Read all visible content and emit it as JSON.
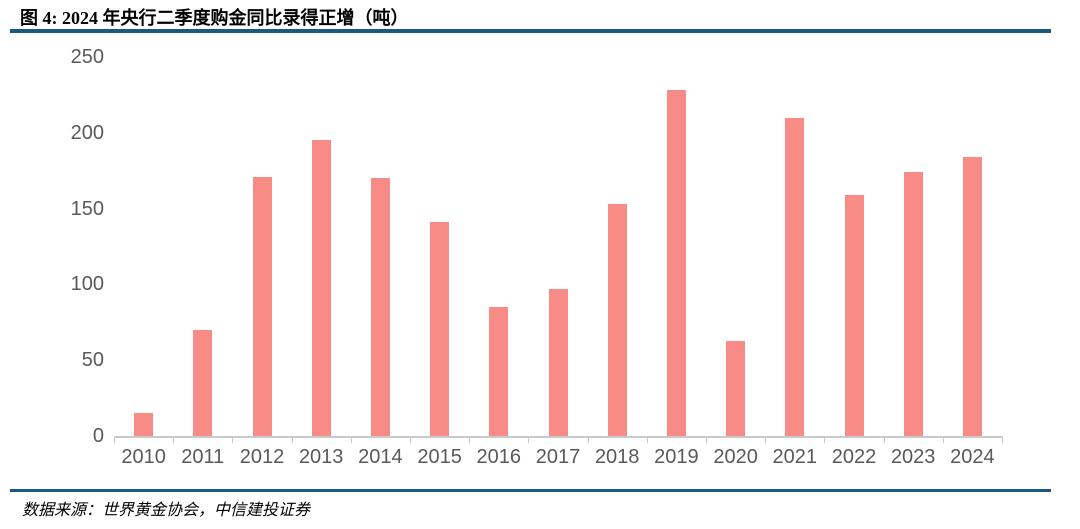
{
  "header": {
    "title": "图 4: 2024 年央行二季度购金同比录得正增（吨）"
  },
  "chart_data": {
    "type": "bar",
    "title": "图 4: 2024 年央行二季度购金同比录得正增（吨）",
    "categories": [
      "2010",
      "2011",
      "2012",
      "2013",
      "2014",
      "2015",
      "2016",
      "2017",
      "2018",
      "2019",
      "2020",
      "2021",
      "2022",
      "2023",
      "2024"
    ],
    "values": [
      15,
      70,
      171,
      195,
      170,
      141,
      85,
      97,
      153,
      228,
      63,
      210,
      159,
      174,
      184
    ],
    "unit": "吨",
    "xlabel": "",
    "ylabel": "",
    "ylim": [
      0,
      250
    ],
    "yticks": [
      0,
      50,
      100,
      150,
      200,
      250
    ],
    "grid": false,
    "legend": false
  },
  "footer": {
    "source": "数据来源：世界黄金协会，中信建投证券"
  },
  "colors": {
    "bar": "#F98B87",
    "accent_rule": "#1A5980",
    "axis_text": "#595959",
    "axis_line": "#C9C9C9",
    "title_text": "#000000"
  }
}
